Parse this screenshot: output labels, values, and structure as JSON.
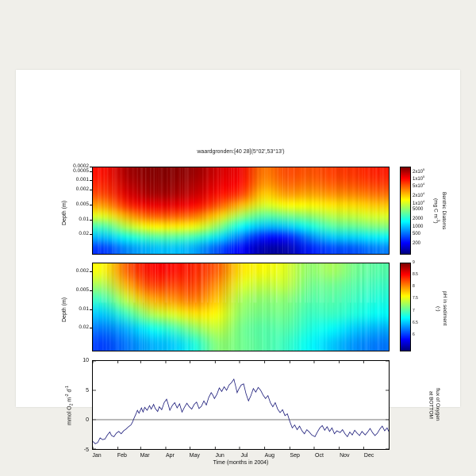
{
  "page": {
    "outer_background": "#f0efea",
    "card_background": "#ffffff",
    "frame_color": "#000000"
  },
  "chart_data": [
    {
      "type": "heatmap",
      "title": "waardgronden:[40 28](5°02',53°13')",
      "ylabel": "Depth (m)",
      "colorbar_label": "Benthic Diatoms\n(mg C m^-3)",
      "colormap": "jet",
      "color_scale": {
        "type": "log10",
        "min_log10": 1.85,
        "max_log10": 5.45
      },
      "y_ticks": [
        {
          "label": "0.0002",
          "pos": 0.0
        },
        {
          "label": "0.0005",
          "pos": 0.05
        },
        {
          "label": "0.001",
          "pos": 0.15
        },
        {
          "label": "0.002",
          "pos": 0.26
        },
        {
          "label": "0.005",
          "pos": 0.43
        },
        {
          "label": "0.01",
          "pos": 0.6
        },
        {
          "label": "0.02",
          "pos": 0.77
        }
      ],
      "colorbar_ticks": [
        {
          "label": "2x10^5",
          "value": 200000
        },
        {
          "label": "1x10^5",
          "value": 100000
        },
        {
          "label": "5x10^4",
          "value": 50000
        },
        {
          "label": "2x10^4",
          "value": 20000
        },
        {
          "label": "1x10^4",
          "value": 10000
        },
        {
          "label": "5000",
          "value": 5000
        },
        {
          "label": "2000",
          "value": 2000
        },
        {
          "label": "1000",
          "value": 1000
        },
        {
          "label": "500",
          "value": 500
        },
        {
          "label": "200",
          "value": 200
        }
      ],
      "x_range_months": [
        "Jan",
        "Dec"
      ],
      "grid_log10_mgC": [
        [
          4.95,
          5.3,
          5.42,
          5.42,
          5.35,
          5.15,
          5.05,
          4.55,
          4.75,
          4.7,
          4.78,
          4.82,
          4.9
        ],
        [
          4.88,
          5.22,
          5.38,
          5.38,
          5.28,
          5.08,
          4.98,
          4.45,
          4.65,
          4.6,
          4.68,
          4.72,
          4.8
        ],
        [
          4.75,
          5.1,
          5.3,
          5.3,
          5.18,
          4.95,
          4.8,
          4.25,
          4.45,
          4.4,
          4.48,
          4.52,
          4.6
        ],
        [
          4.45,
          4.85,
          5.05,
          5.08,
          4.98,
          4.7,
          4.35,
          3.95,
          4.1,
          4.1,
          4.18,
          4.22,
          4.3
        ],
        [
          4.0,
          4.4,
          4.65,
          4.68,
          4.58,
          4.25,
          3.75,
          3.5,
          3.6,
          3.7,
          3.85,
          3.9,
          3.98
        ],
        [
          3.45,
          3.85,
          4.1,
          4.15,
          4.05,
          3.7,
          3.2,
          2.95,
          3.0,
          3.25,
          3.5,
          3.55,
          3.65
        ],
        [
          2.95,
          3.25,
          3.45,
          3.5,
          3.4,
          3.1,
          2.7,
          2.35,
          2.35,
          2.75,
          3.0,
          3.05,
          3.15
        ],
        [
          2.5,
          2.8,
          2.95,
          3.0,
          2.9,
          2.6,
          2.3,
          2.0,
          2.0,
          2.4,
          2.55,
          2.6,
          2.75
        ]
      ]
    },
    {
      "type": "heatmap",
      "ylabel": "Depth (m)",
      "colorbar_label": "pH in sediment\n(-)",
      "colormap": "jet",
      "color_scale": {
        "type": "linear",
        "min": 5.3,
        "max": 9.0
      },
      "y_ticks": [
        {
          "label": "0.002",
          "pos": 0.1
        },
        {
          "label": "0.005",
          "pos": 0.31
        },
        {
          "label": "0.01",
          "pos": 0.53
        },
        {
          "label": "0.02",
          "pos": 0.73
        }
      ],
      "colorbar_ticks": [
        {
          "label": "9",
          "value": 9
        },
        {
          "label": "8.5",
          "value": 8.5
        },
        {
          "label": "8",
          "value": 8
        },
        {
          "label": "7.5",
          "value": 7.5
        },
        {
          "label": "7",
          "value": 7
        },
        {
          "label": "6.5",
          "value": 6.5
        },
        {
          "label": "6",
          "value": 6
        }
      ],
      "x_range_months": [
        "Jan",
        "Dec"
      ],
      "grid_pH": [
        [
          7.6,
          8.2,
          8.5,
          8.5,
          8.4,
          8.2,
          7.7,
          7.6,
          7.5,
          7.2,
          7.3,
          7.1,
          7.0
        ],
        [
          7.3,
          7.9,
          8.3,
          8.3,
          8.3,
          8.0,
          7.5,
          7.4,
          7.4,
          7.1,
          7.1,
          7.0,
          6.9
        ],
        [
          6.9,
          7.4,
          7.9,
          8.0,
          8.1,
          7.8,
          7.3,
          7.2,
          7.2,
          7.0,
          7.0,
          6.9,
          6.8
        ],
        [
          6.5,
          6.9,
          7.3,
          7.5,
          7.7,
          7.6,
          7.2,
          7.1,
          7.1,
          6.9,
          6.9,
          6.8,
          6.7
        ],
        [
          6.2,
          6.4,
          6.7,
          6.9,
          7.2,
          7.4,
          7.1,
          7.0,
          7.0,
          6.8,
          6.7,
          6.5,
          6.4
        ],
        [
          6.0,
          6.2,
          6.4,
          6.5,
          6.8,
          7.2,
          7.1,
          7.0,
          6.9,
          6.7,
          6.5,
          6.3,
          6.2
        ]
      ]
    },
    {
      "type": "line",
      "xlabel": "Time (months in 2004)",
      "ylabel": "mmol O_2 m^-2 d^-1",
      "right_label": "flux of Oxygen\nat BOTTOM",
      "ylim": [
        -5,
        10
      ],
      "y_ticks": [
        10,
        5,
        0,
        -5
      ],
      "months": [
        "Jan",
        "Feb",
        "Mar",
        "Apr",
        "May",
        "Jun",
        "Jul",
        "Aug",
        "Sep",
        "Oct",
        "Nov",
        "Dec"
      ],
      "month_start_days": [
        0,
        31,
        59,
        90,
        120,
        151,
        181,
        212,
        243,
        273,
        304,
        334
      ],
      "days_in_year": 365,
      "zero_line": true,
      "line_color": "#1b1b7a",
      "series": [
        {
          "name": "oxygen flux at bottom",
          "points": [
            [
              0,
              -3.7
            ],
            [
              3,
              -4.1
            ],
            [
              6,
              -3.9
            ],
            [
              9,
              -3.1
            ],
            [
              12,
              -3.4
            ],
            [
              15,
              -3.3
            ],
            [
              18,
              -2.6
            ],
            [
              21,
              -2.1
            ],
            [
              23,
              -2.7
            ],
            [
              26,
              -2.9
            ],
            [
              29,
              -2.3
            ],
            [
              32,
              -2.0
            ],
            [
              35,
              -2.4
            ],
            [
              38,
              -1.9
            ],
            [
              41,
              -1.6
            ],
            [
              44,
              -1.2
            ],
            [
              47,
              -0.9
            ],
            [
              49,
              -0.4
            ],
            [
              51,
              0.3
            ],
            [
              53,
              0.9
            ],
            [
              55,
              1.6
            ],
            [
              57,
              1.1
            ],
            [
              60,
              2.0
            ],
            [
              62,
              1.3
            ],
            [
              64,
              2.1
            ],
            [
              67,
              1.6
            ],
            [
              70,
              2.4
            ],
            [
              72,
              1.8
            ],
            [
              75,
              2.6
            ],
            [
              77,
              1.9
            ],
            [
              80,
              1.4
            ],
            [
              82,
              2.2
            ],
            [
              85,
              1.7
            ],
            [
              88,
              2.9
            ],
            [
              91,
              3.5
            ],
            [
              93,
              2.6
            ],
            [
              95,
              1.6
            ],
            [
              98,
              2.4
            ],
            [
              101,
              2.9
            ],
            [
              104,
              2.0
            ],
            [
              107,
              2.7
            ],
            [
              110,
              1.3
            ],
            [
              113,
              2.1
            ],
            [
              116,
              2.8
            ],
            [
              119,
              2.2
            ],
            [
              122,
              1.8
            ],
            [
              125,
              2.6
            ],
            [
              128,
              3.0
            ],
            [
              131,
              1.9
            ],
            [
              134,
              2.3
            ],
            [
              137,
              3.2
            ],
            [
              140,
              2.5
            ],
            [
              143,
              3.8
            ],
            [
              146,
              4.6
            ],
            [
              148,
              4.2
            ],
            [
              150,
              3.6
            ],
            [
              153,
              4.3
            ],
            [
              156,
              5.4
            ],
            [
              159,
              4.8
            ],
            [
              162,
              5.6
            ],
            [
              165,
              5.0
            ],
            [
              168,
              5.9
            ],
            [
              171,
              6.3
            ],
            [
              174,
              6.9
            ],
            [
              176,
              5.8
            ],
            [
              178,
              4.6
            ],
            [
              180,
              5.2
            ],
            [
              183,
              5.9
            ],
            [
              186,
              6.1
            ],
            [
              189,
              4.4
            ],
            [
              192,
              3.2
            ],
            [
              195,
              4.1
            ],
            [
              198,
              5.3
            ],
            [
              201,
              4.7
            ],
            [
              204,
              5.5
            ],
            [
              207,
              5.0
            ],
            [
              210,
              4.2
            ],
            [
              213,
              3.6
            ],
            [
              216,
              4.1
            ],
            [
              219,
              2.9
            ],
            [
              222,
              2.2
            ],
            [
              225,
              2.9
            ],
            [
              228,
              1.8
            ],
            [
              231,
              1.2
            ],
            [
              234,
              1.7
            ],
            [
              237,
              0.7
            ],
            [
              240,
              1.0
            ],
            [
              243,
              -0.3
            ],
            [
              246,
              -1.4
            ],
            [
              249,
              -0.9
            ],
            [
              252,
              -1.7
            ],
            [
              255,
              -1.1
            ],
            [
              258,
              -1.9
            ],
            [
              261,
              -2.4
            ],
            [
              264,
              -1.7
            ],
            [
              267,
              -2.1
            ],
            [
              270,
              -2.6
            ],
            [
              274,
              -2.9
            ],
            [
              277,
              -2.1
            ],
            [
              280,
              -1.4
            ],
            [
              283,
              -1.0
            ],
            [
              286,
              -1.8
            ],
            [
              289,
              -1.2
            ],
            [
              292,
              -2.0
            ],
            [
              295,
              -1.4
            ],
            [
              298,
              -2.4
            ],
            [
              301,
              -1.9
            ],
            [
              305,
              -2.2
            ],
            [
              308,
              -1.7
            ],
            [
              311,
              -2.4
            ],
            [
              314,
              -2.9
            ],
            [
              317,
              -2.1
            ],
            [
              320,
              -2.6
            ],
            [
              323,
              -1.8
            ],
            [
              326,
              -2.3
            ],
            [
              329,
              -2.7
            ],
            [
              332,
              -2.0
            ],
            [
              336,
              -2.6
            ],
            [
              339,
              -2.1
            ],
            [
              342,
              -1.5
            ],
            [
              345,
              -2.2
            ],
            [
              348,
              -2.7
            ],
            [
              351,
              -2.3
            ],
            [
              354,
              -1.6
            ],
            [
              357,
              -1.1
            ],
            [
              360,
              -1.9
            ],
            [
              363,
              -1.4
            ],
            [
              365,
              -2.0
            ]
          ]
        }
      ]
    }
  ]
}
